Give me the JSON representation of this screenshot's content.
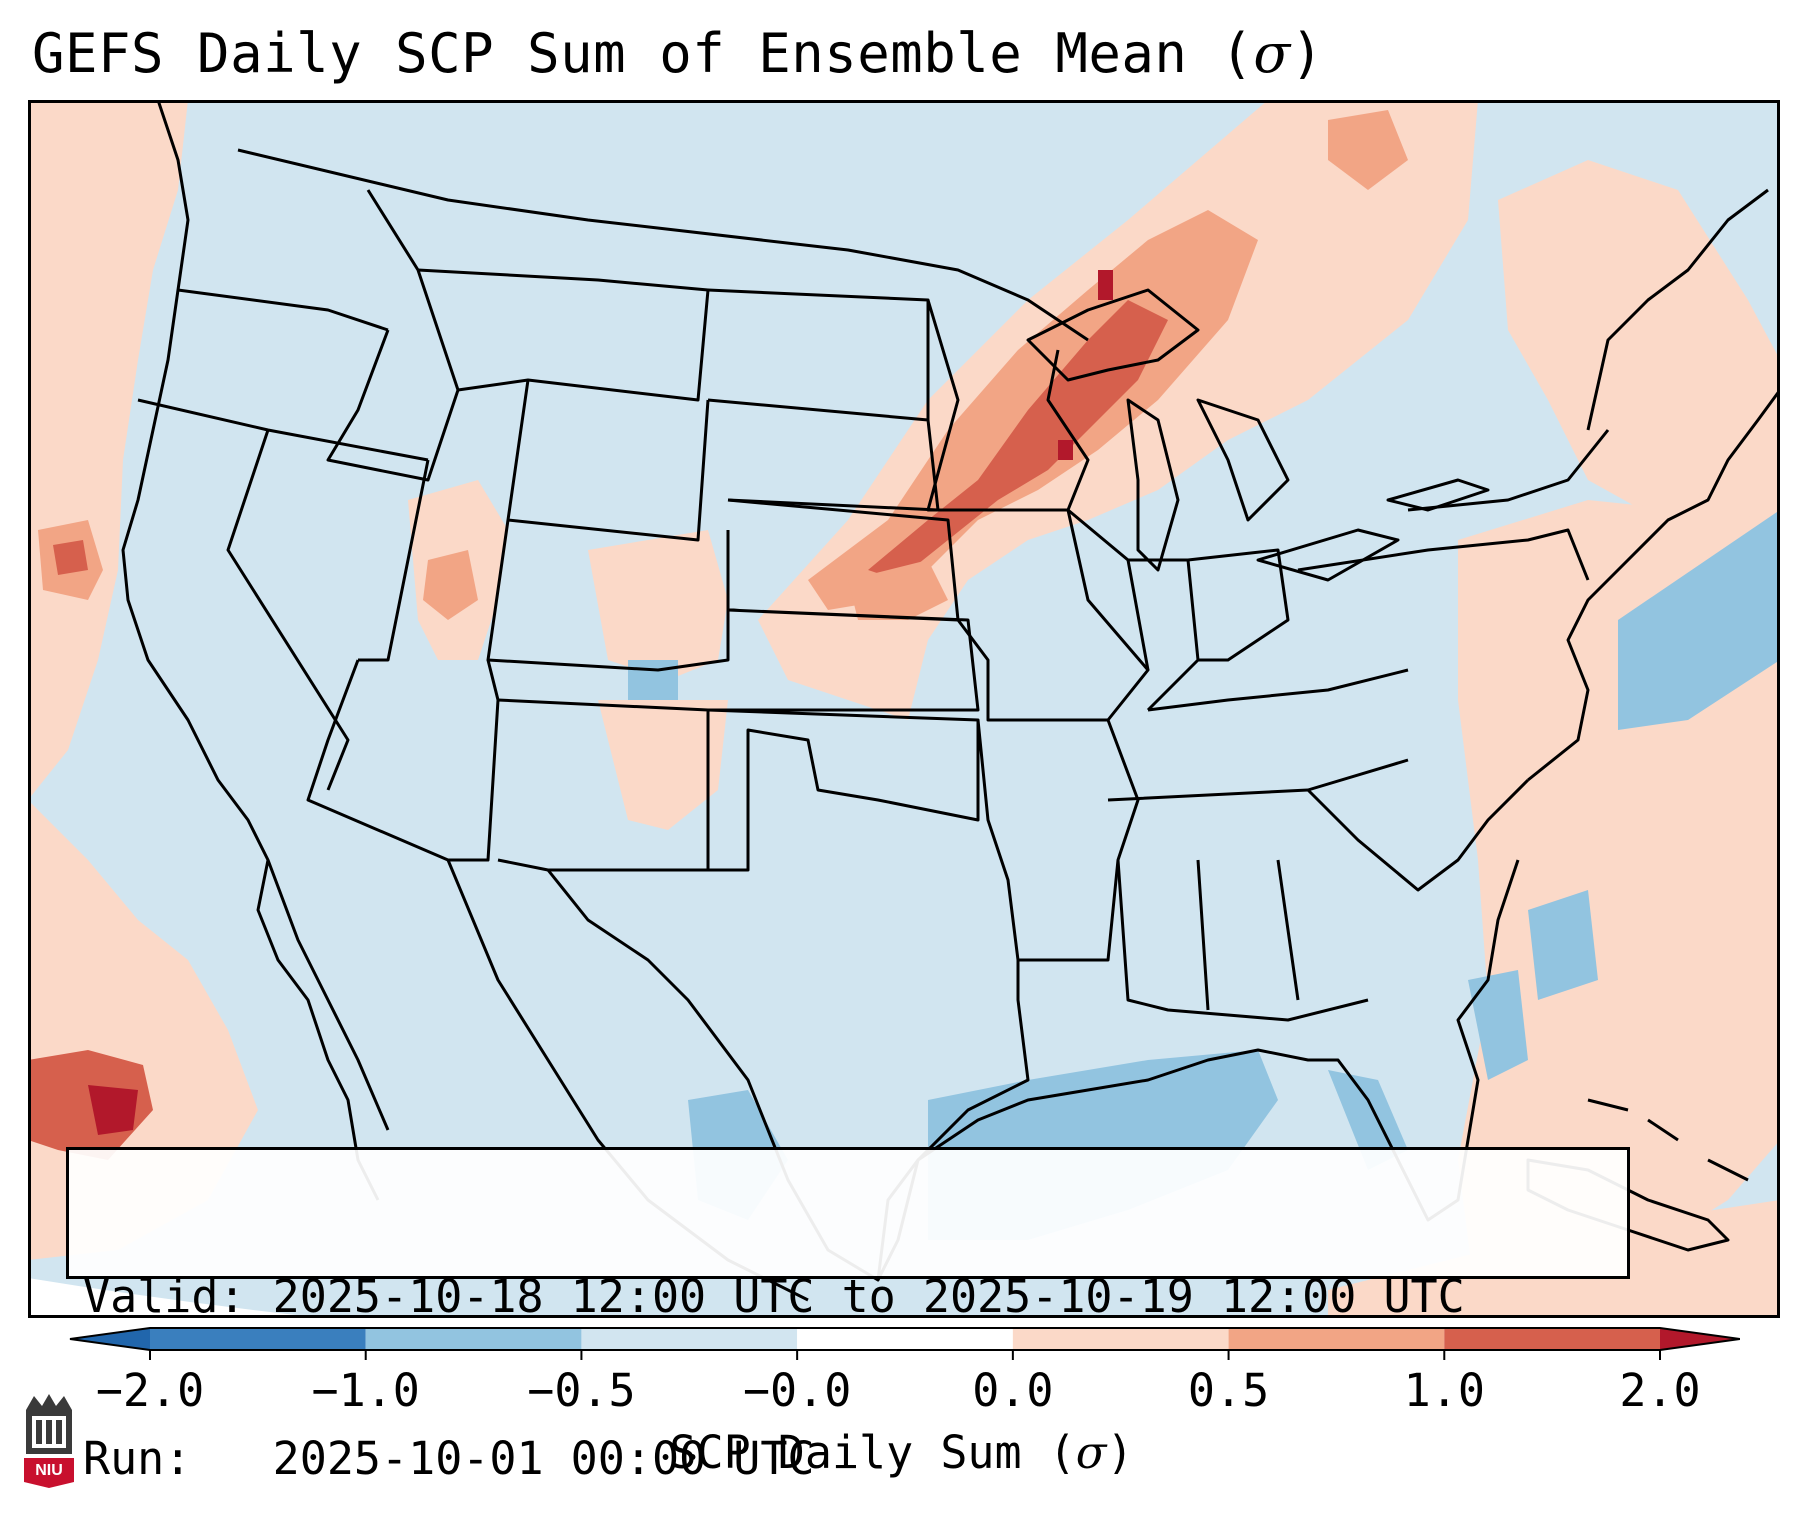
{
  "title": {
    "text": "GEFS Daily SCP Sum of Ensemble Mean (",
    "symbol": "σ",
    "close": ")"
  },
  "info": {
    "valid_label": "Valid:",
    "valid_value": "2025-10-18 12:00 UTC to 2025-10-19 12:00 UTC",
    "run_label": "Run:",
    "run_value": "2025-10-01 00:00 UTC"
  },
  "colorbar": {
    "ticks": [
      "−2.0",
      "−1.0",
      "−0.5",
      "−0.0",
      "0.0",
      "0.5",
      "1.0",
      "2.0"
    ],
    "colors": [
      "#3a7fbe",
      "#92c4e0",
      "#d2e5f0",
      "#fbd9c8",
      "#f2a585",
      "#d6604d"
    ],
    "under_color": "#2166ac",
    "over_color": "#b2182b",
    "label": "SCP Daily Sum (",
    "label_symbol": "σ",
    "label_close": ")"
  },
  "map": {
    "background_color": "#d1e5f0",
    "outside_color": "#ffffff",
    "weak_positive_color": "#fbd9c8",
    "moderate_positive_color": "#f2a585",
    "strong_positive_color": "#d6604d",
    "extreme_positive_color": "#b2182b",
    "weak_negative_color": "#92c4e0",
    "features": [
      "contiguous-us-states",
      "mexico",
      "canada",
      "cuba",
      "great-lakes",
      "gulf-of-mexico"
    ]
  },
  "logo": {
    "text": "NIU",
    "color": "#c8102e"
  }
}
